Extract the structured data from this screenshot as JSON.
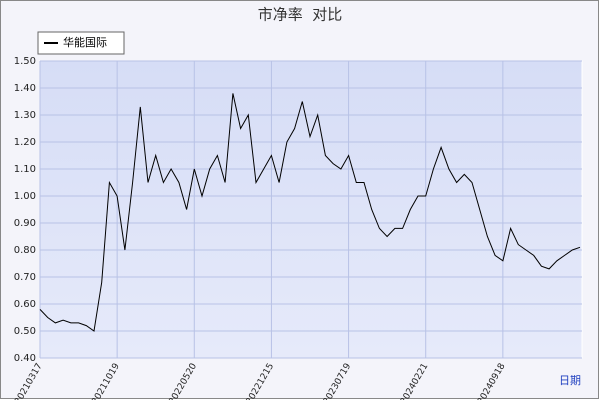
{
  "chart_data": {
    "type": "line",
    "title": "市净率  对比",
    "x_label": "日期",
    "categories": [
      "20210317",
      null,
      null,
      null,
      null,
      null,
      null,
      null,
      null,
      null,
      "20211019",
      null,
      null,
      null,
      null,
      null,
      null,
      null,
      null,
      null,
      "20220520",
      null,
      null,
      null,
      null,
      null,
      null,
      null,
      null,
      null,
      "20221215",
      null,
      null,
      null,
      null,
      null,
      null,
      null,
      null,
      null,
      "20230719",
      null,
      null,
      null,
      null,
      null,
      null,
      null,
      null,
      null,
      "20240221",
      null,
      null,
      null,
      null,
      null,
      null,
      null,
      null,
      null,
      "20240918",
      null,
      null,
      null,
      null,
      null,
      null,
      null,
      null,
      null,
      null
    ],
    "series": [
      {
        "name": "华能国际",
        "color": "#000000",
        "values": [
          0.58,
          0.55,
          0.53,
          0.54,
          0.53,
          0.53,
          0.52,
          0.5,
          0.68,
          1.05,
          1.0,
          0.8,
          1.05,
          1.33,
          1.05,
          1.15,
          1.05,
          1.1,
          1.05,
          0.95,
          1.1,
          1.0,
          1.1,
          1.15,
          1.05,
          1.38,
          1.25,
          1.3,
          1.05,
          1.1,
          1.15,
          1.05,
          1.2,
          1.25,
          1.35,
          1.22,
          1.3,
          1.15,
          1.12,
          1.1,
          1.15,
          1.05,
          1.05,
          0.95,
          0.88,
          0.85,
          0.88,
          0.88,
          0.95,
          1.0,
          1.0,
          1.1,
          1.18,
          1.1,
          1.05,
          1.08,
          1.05,
          0.95,
          0.85,
          0.78,
          0.76,
          0.88,
          0.82,
          0.8,
          0.78,
          0.74,
          0.73,
          0.76,
          0.78,
          0.8,
          0.81
        ]
      }
    ],
    "ylim": [
      0.4,
      1.5
    ],
    "yticks": [
      {
        "value": 0.4,
        "label": "0.40"
      },
      {
        "value": 0.5,
        "label": "0.50"
      },
      {
        "value": 0.6,
        "label": "0.60"
      },
      {
        "value": 0.7,
        "label": "0.70"
      },
      {
        "value": 0.8,
        "label": "0.80"
      },
      {
        "value": 0.9,
        "label": "0.90"
      },
      {
        "value": 1.0,
        "label": "1.00"
      },
      {
        "value": 1.1,
        "label": "1.10"
      },
      {
        "value": 1.2,
        "label": "1.20"
      },
      {
        "value": 1.3,
        "label": "1.30"
      },
      {
        "value": 1.4,
        "label": "1.40"
      },
      {
        "value": 1.5,
        "label": "1.50"
      }
    ],
    "grid": true,
    "legend": "top-left"
  }
}
